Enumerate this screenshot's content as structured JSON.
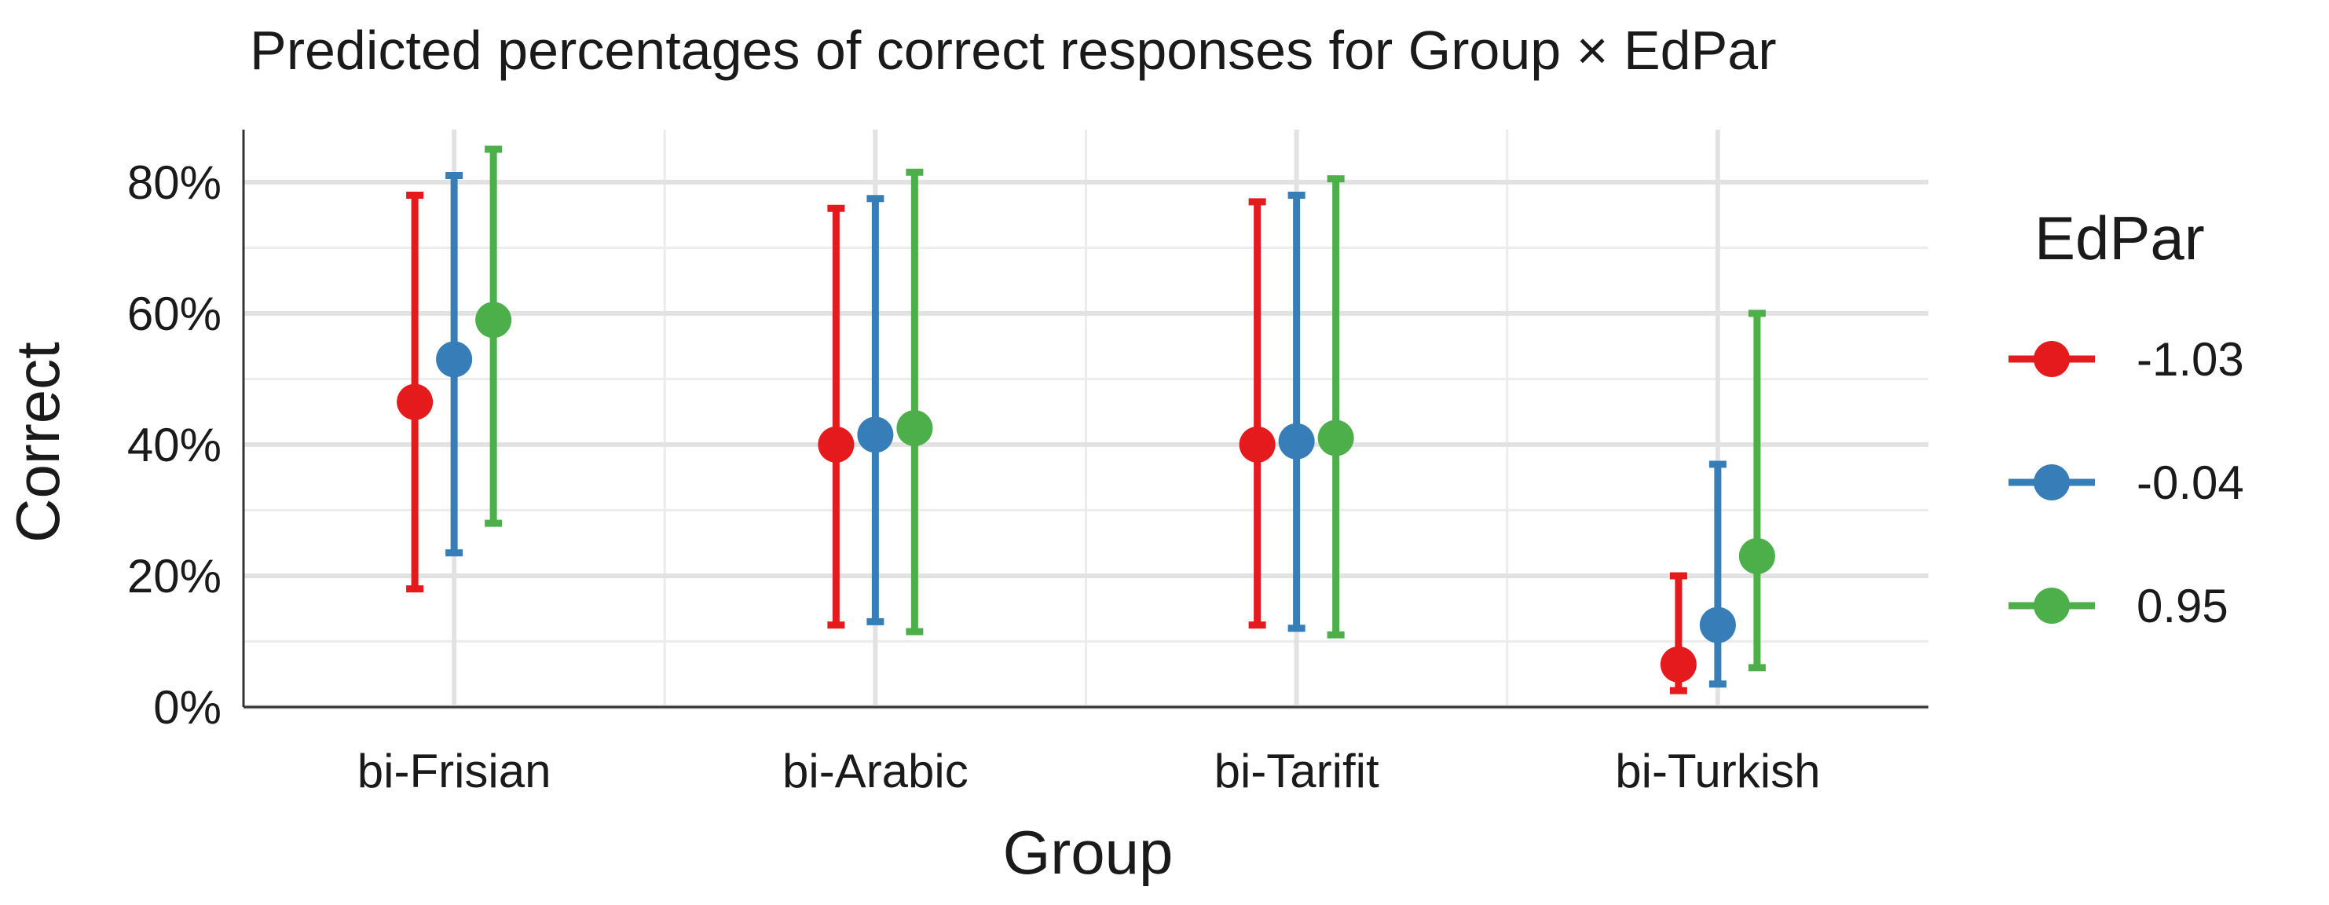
{
  "chart_data": {
    "type": "scatter",
    "title": "Predicted percentages of correct responses for Group × EdPar",
    "xlabel": "Group",
    "ylabel": "Correct",
    "categories": [
      "bi-Frisian",
      "bi-Arabic",
      "bi-Tarifit",
      "bi-Turkish"
    ],
    "y_ticks": [
      0,
      20,
      40,
      60,
      80
    ],
    "y_tick_labels": [
      "0%",
      "20%",
      "40%",
      "60%",
      "80%"
    ],
    "ylim": [
      0,
      88
    ],
    "grid": true,
    "legend": {
      "title": "EdPar",
      "position": "right"
    },
    "series": [
      {
        "name": "-1.03",
        "color": "#E41A1C",
        "values": [
          46.5,
          40,
          40,
          6.5
        ],
        "lower": [
          18,
          12.5,
          12.5,
          2.5
        ],
        "upper": [
          78,
          76,
          77,
          20
        ]
      },
      {
        "name": "-0.04",
        "color": "#377EB8",
        "values": [
          53,
          41.5,
          40.5,
          12.5
        ],
        "lower": [
          23.5,
          13,
          12,
          3.5
        ],
        "upper": [
          81,
          77.5,
          78,
          37
        ]
      },
      {
        "name": "0.95",
        "color": "#4DAF4A",
        "values": [
          59,
          42.5,
          41,
          23
        ],
        "lower": [
          28,
          11.5,
          11,
          6
        ],
        "upper": [
          85,
          81.5,
          80.5,
          60
        ]
      }
    ]
  }
}
